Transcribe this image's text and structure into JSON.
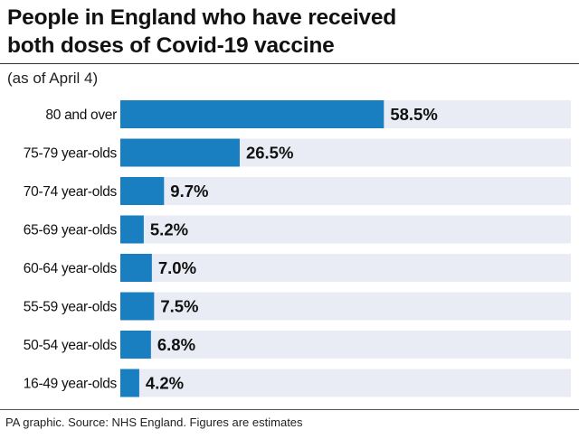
{
  "header": {
    "title_line1": "People in England who have received",
    "title_line2": "both doses of Covid-19 vaccine",
    "subtitle": "(as of April 4)"
  },
  "footer": {
    "source": "PA graphic. Source: NHS England. Figures are estimates"
  },
  "colors": {
    "bar": "#1a7fc1",
    "track": "#e9ecf4",
    "text": "#111111"
  },
  "chart_data": {
    "type": "bar",
    "orientation": "horizontal",
    "categories": [
      "80 and over",
      "75-79 year-olds",
      "70-74 year-olds",
      "65-69 year-olds",
      "60-64 year-olds",
      "55-59 year-olds",
      "50-54 year-olds",
      "16-49 year-olds"
    ],
    "values": [
      58.5,
      26.5,
      9.7,
      5.2,
      7.0,
      7.5,
      6.8,
      4.2
    ],
    "value_labels": [
      "58.5%",
      "26.5%",
      "9.7%",
      "5.2%",
      "7.0%",
      "7.5%",
      "6.8%",
      "4.2%"
    ],
    "xlim": [
      0,
      100
    ],
    "grid": false,
    "legend": "none"
  }
}
